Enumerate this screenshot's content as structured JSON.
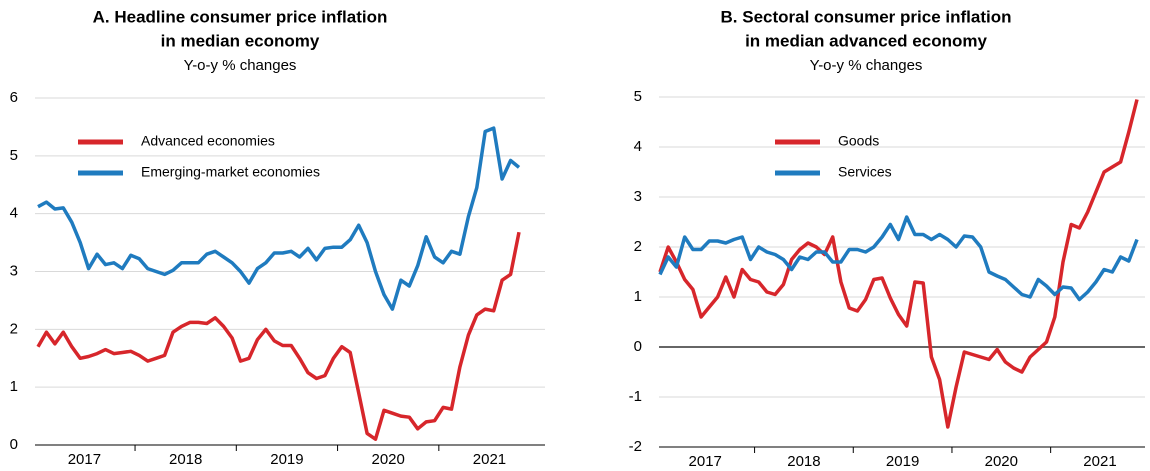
{
  "chart_data": [
    {
      "type": "line",
      "title": [
        "A. Headline consumer price inflation",
        "in median economy"
      ],
      "subtitle": "Y-o-y % changes",
      "categories": [
        null,
        null,
        null,
        null,
        null,
        null,
        "2017",
        null,
        null,
        null,
        null,
        null,
        null,
        null,
        null,
        null,
        null,
        null,
        "2018",
        null,
        null,
        null,
        null,
        null,
        null,
        null,
        null,
        null,
        null,
        null,
        "2019",
        null,
        null,
        null,
        null,
        null,
        null,
        null,
        null,
        null,
        null,
        null,
        "2020",
        null,
        null,
        null,
        null,
        null,
        null,
        null,
        null,
        null,
        null,
        null,
        "2021",
        null,
        null,
        null
      ],
      "series": [
        {
          "name": "Advanced economies",
          "color": "#d7262b",
          "values": [
            1.7,
            1.95,
            1.75,
            1.95,
            1.7,
            1.5,
            1.53,
            1.58,
            1.65,
            1.58,
            1.6,
            1.62,
            1.55,
            1.45,
            1.5,
            1.55,
            1.95,
            2.05,
            2.12,
            2.12,
            2.1,
            2.2,
            2.05,
            1.85,
            1.45,
            1.5,
            1.82,
            2.0,
            1.8,
            1.72,
            1.72,
            1.5,
            1.25,
            1.15,
            1.2,
            1.5,
            1.7,
            1.6,
            0.9,
            0.2,
            0.1,
            0.6,
            0.55,
            0.5,
            0.48,
            0.28,
            0.4,
            0.42,
            0.65,
            0.62,
            1.35,
            1.9,
            2.25,
            2.35,
            2.32,
            2.85,
            2.95,
            3.68
          ]
        },
        {
          "name": "Emerging-market economies",
          "color": "#1f7bbf",
          "values": [
            4.12,
            4.2,
            4.08,
            4.1,
            3.85,
            3.5,
            3.05,
            3.3,
            3.12,
            3.15,
            3.05,
            3.28,
            3.22,
            3.05,
            3.0,
            2.95,
            3.02,
            3.15,
            3.15,
            3.15,
            3.3,
            3.35,
            3.25,
            3.15,
            3.0,
            2.8,
            3.05,
            3.15,
            3.32,
            3.32,
            3.35,
            3.25,
            3.4,
            3.2,
            3.4,
            3.42,
            3.42,
            3.55,
            3.8,
            3.5,
            3.0,
            2.6,
            2.35,
            2.85,
            2.75,
            3.1,
            3.6,
            3.25,
            3.15,
            3.35,
            3.3,
            3.95,
            4.45,
            5.42,
            5.48,
            4.6,
            4.92,
            4.8
          ]
        }
      ],
      "ylim": [
        0,
        6
      ],
      "yticks": [
        0,
        1,
        2,
        3,
        4,
        5,
        6
      ],
      "grid": true
    },
    {
      "type": "line",
      "title": [
        "B. Sectoral consumer price inflation",
        "in median advanced economy"
      ],
      "subtitle": "Y-o-y % changes",
      "categories": [
        null,
        null,
        null,
        null,
        null,
        null,
        "2017",
        null,
        null,
        null,
        null,
        null,
        null,
        null,
        null,
        null,
        null,
        null,
        "2018",
        null,
        null,
        null,
        null,
        null,
        null,
        null,
        null,
        null,
        null,
        null,
        "2019",
        null,
        null,
        null,
        null,
        null,
        null,
        null,
        null,
        null,
        null,
        null,
        "2020",
        null,
        null,
        null,
        null,
        null,
        null,
        null,
        null,
        null,
        null,
        null,
        "2021",
        null,
        null,
        null,
        null
      ],
      "series": [
        {
          "name": "Goods",
          "color": "#d7262b",
          "values": [
            1.5,
            2.0,
            1.7,
            1.35,
            1.15,
            0.6,
            0.8,
            1.0,
            1.4,
            1.0,
            1.55,
            1.35,
            1.3,
            1.1,
            1.05,
            1.25,
            1.75,
            1.95,
            2.08,
            2.0,
            1.85,
            2.2,
            1.3,
            0.78,
            0.72,
            0.95,
            1.35,
            1.38,
            0.98,
            0.65,
            0.42,
            1.3,
            1.28,
            -0.2,
            -0.65,
            -1.6,
            -0.8,
            -0.1,
            -0.15,
            -0.2,
            -0.25,
            -0.05,
            -0.3,
            -0.42,
            -0.5,
            -0.2,
            -0.05,
            0.1,
            0.6,
            1.7,
            2.45,
            2.38,
            2.7,
            3.1,
            3.5,
            3.6,
            3.7,
            4.3,
            4.95
          ]
        },
        {
          "name": "Services",
          "color": "#1f7bbf",
          "values": [
            1.45,
            1.8,
            1.6,
            2.2,
            1.95,
            1.95,
            2.12,
            2.12,
            2.08,
            2.15,
            2.2,
            1.75,
            2.0,
            1.9,
            1.85,
            1.75,
            1.55,
            1.8,
            1.75,
            1.9,
            1.9,
            1.7,
            1.7,
            1.95,
            1.95,
            1.9,
            2.0,
            2.2,
            2.45,
            2.15,
            2.6,
            2.25,
            2.25,
            2.15,
            2.25,
            2.15,
            2.0,
            2.22,
            2.2,
            2.0,
            1.5,
            1.42,
            1.35,
            1.2,
            1.05,
            1.0,
            1.35,
            1.22,
            1.05,
            1.2,
            1.18,
            0.95,
            1.1,
            1.3,
            1.55,
            1.5,
            1.8,
            1.72,
            2.15
          ]
        }
      ],
      "ylim": [
        -2,
        5
      ],
      "yticks": [
        -2,
        -1,
        0,
        1,
        2,
        3,
        4,
        5
      ],
      "grid": true,
      "zero_line": true
    }
  ]
}
